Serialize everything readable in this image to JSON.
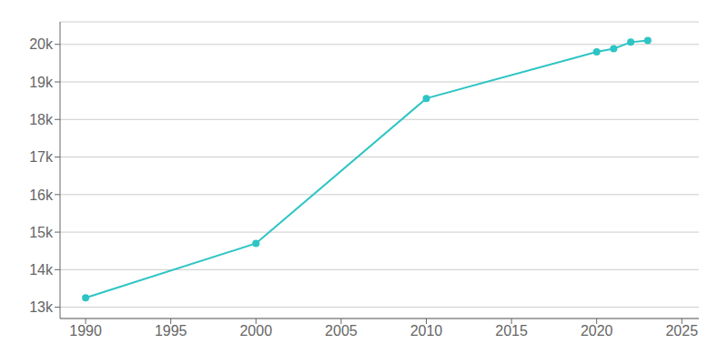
{
  "chart_data": {
    "type": "line",
    "x": [
      1990,
      2000,
      2010,
      2020,
      2021,
      2022,
      2023
    ],
    "values": [
      13252,
      14700,
      18561,
      19802,
      19885,
      20058,
      20105
    ],
    "color": "#2ec4c4",
    "marker": "circle",
    "xlim": [
      1988.5,
      2026
    ],
    "xticks": [
      1990,
      1995,
      2000,
      2005,
      2010,
      2015,
      2020,
      2025
    ],
    "ylim": [
      12700,
      20600
    ],
    "yticks": [
      {
        "value": 13000,
        "label": "13k"
      },
      {
        "value": 14000,
        "label": "14k"
      },
      {
        "value": 15000,
        "label": "15k"
      },
      {
        "value": 16000,
        "label": "16k"
      },
      {
        "value": 17000,
        "label": "17k"
      },
      {
        "value": 18000,
        "label": "18k"
      },
      {
        "value": 19000,
        "label": "19k"
      },
      {
        "value": 20000,
        "label": "20k"
      }
    ],
    "grid": true
  }
}
